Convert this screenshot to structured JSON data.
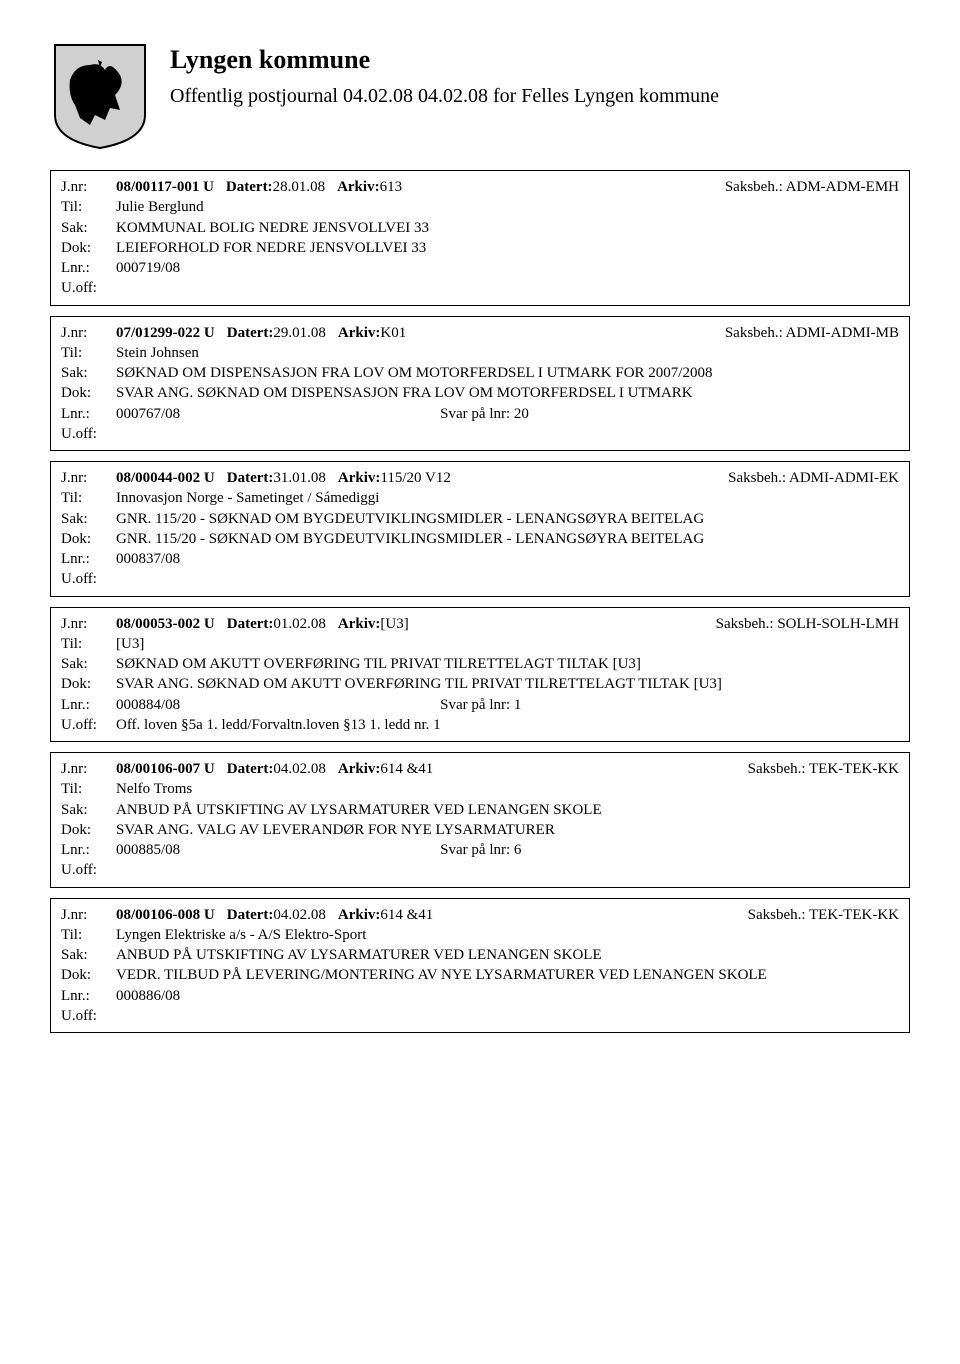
{
  "header": {
    "title": "Lyngen kommune",
    "subtitle": "Offentlig postjournal 04.02.08 04.02.08 for Felles Lyngen kommune"
  },
  "labels": {
    "jnr": "J.nr:",
    "til": "Til:",
    "sak": "Sak:",
    "dok": "Dok:",
    "lnr": "Lnr.:",
    "uoff": "U.off:",
    "datert": "Datert:",
    "arkiv": "Arkiv:",
    "saksbeh": "Saksbeh.:"
  },
  "records": [
    {
      "jnr": "08/00117-001 U",
      "datert": "28.01.08",
      "arkiv": "613",
      "saksbeh": "ADM-ADM-EMH",
      "til": "Julie Berglund",
      "sak": "KOMMUNAL BOLIG NEDRE JENSVOLLVEI 33",
      "dok": "LEIEFORHOLD FOR NEDRE JENSVOLLVEI 33",
      "lnr": "000719/08",
      "lnr_svar": "",
      "uoff": ""
    },
    {
      "jnr": "07/01299-022 U",
      "datert": "29.01.08",
      "arkiv": "K01",
      "saksbeh": "ADMI-ADMI-MB",
      "til": "Stein Johnsen",
      "sak": "SØKNAD OM DISPENSASJON FRA LOV OM MOTORFERDSEL I UTMARK FOR 2007/2008",
      "dok": "SVAR ANG. SØKNAD OM DISPENSASJON FRA LOV OM MOTORFERDSEL I UTMARK",
      "lnr": "000767/08",
      "lnr_svar": "Svar på lnr: 20",
      "uoff": ""
    },
    {
      "jnr": "08/00044-002 U",
      "datert": "31.01.08",
      "arkiv": "115/20 V12",
      "saksbeh": "ADMI-ADMI-EK",
      "til": "Innovasjon Norge - Sametinget / Sámediggi",
      "sak": "GNR. 115/20 - SØKNAD OM BYGDEUTVIKLINGSMIDLER - LENANGSØYRA BEITELAG",
      "dok": "GNR. 115/20 - SØKNAD OM BYGDEUTVIKLINGSMIDLER - LENANGSØYRA BEITELAG",
      "lnr": "000837/08",
      "lnr_svar": "",
      "uoff": ""
    },
    {
      "jnr": "08/00053-002 U",
      "datert": "01.02.08",
      "arkiv": "[U3]",
      "saksbeh": "SOLH-SOLH-LMH",
      "til": "[U3]",
      "sak": "SØKNAD OM AKUTT OVERFØRING TIL PRIVAT TILRETTELAGT TILTAK [U3]",
      "dok": "SVAR ANG. SØKNAD OM AKUTT OVERFØRING TIL PRIVAT TILRETTELAGT TILTAK [U3]",
      "lnr": "000884/08",
      "lnr_svar": "Svar på lnr: 1",
      "uoff": "Off. loven §5a 1. ledd/Forvaltn.loven §13 1. ledd nr. 1"
    },
    {
      "jnr": "08/00106-007 U",
      "datert": "04.02.08",
      "arkiv": "614 &41",
      "saksbeh": "TEK-TEK-KK",
      "til": "Nelfo Troms",
      "sak": "ANBUD PÅ UTSKIFTING AV LYSARMATURER VED LENANGEN SKOLE",
      "dok": "SVAR ANG. VALG AV LEVERANDØR FOR NYE LYSARMATURER",
      "lnr": "000885/08",
      "lnr_svar": "Svar på lnr: 6",
      "uoff": ""
    },
    {
      "jnr": "08/00106-008 U",
      "datert": "04.02.08",
      "arkiv": "614 &41",
      "saksbeh": "TEK-TEK-KK",
      "til": "Lyngen Elektriske a/s - A/S Elektro-Sport",
      "sak": "ANBUD PÅ UTSKIFTING AV LYSARMATURER VED LENANGEN SKOLE",
      "dok": "VEDR. TILBUD PÅ LEVERING/MONTERING AV NYE LYSARMATURER VED LENANGEN SKOLE",
      "lnr": "000886/08",
      "lnr_svar": "",
      "uoff": ""
    }
  ]
}
